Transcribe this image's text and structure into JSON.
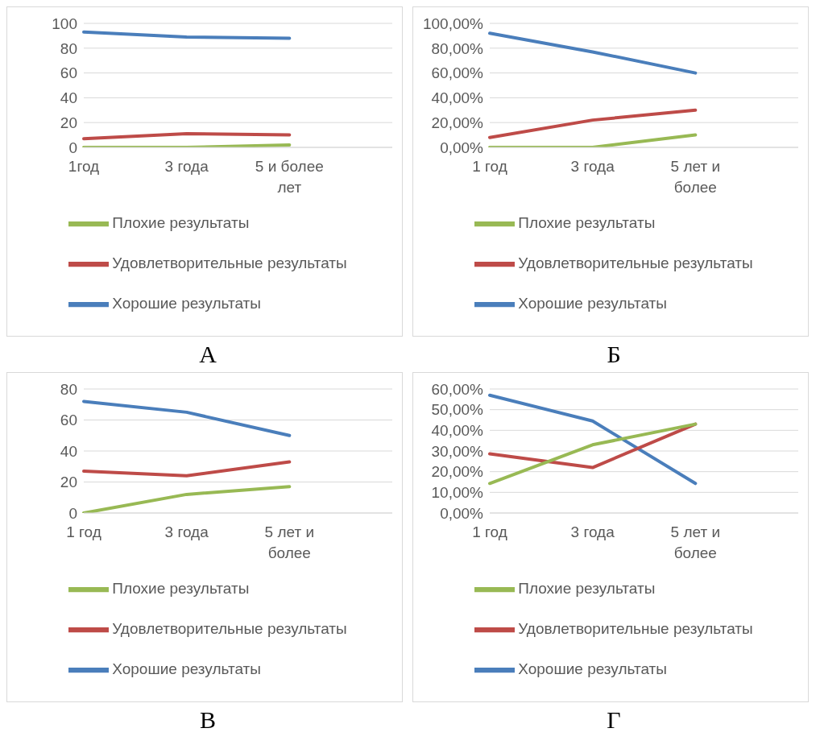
{
  "chart_data": [
    {
      "type": "line",
      "title": "А",
      "categories": [
        "1год",
        "3 года",
        "5 и более лет",
        null
      ],
      "ylim": [
        0,
        100
      ],
      "yticks": [
        0,
        20,
        40,
        60,
        80,
        100
      ],
      "grid": "y",
      "legend": "bottom",
      "marker": "none",
      "series": [
        {
          "name": "Хорошие результаты",
          "color": "#4a7ebb",
          "values": [
            93,
            89,
            88,
            null
          ]
        },
        {
          "name": "Удовлетворительные результаты",
          "color": "#be4b48",
          "values": [
            7,
            11,
            10,
            null
          ]
        },
        {
          "name": "Плохие результаты",
          "color": "#98b954",
          "values": [
            0,
            0,
            2,
            null
          ]
        }
      ]
    },
    {
      "type": "line",
      "title": "Б",
      "categories": [
        "1 год",
        "3 года",
        "5 лет и более",
        null
      ],
      "ylim": [
        0,
        100
      ],
      "yticks": [
        {
          "value": 0,
          "label": "0,00%"
        },
        {
          "value": 20,
          "label": "20,00%"
        },
        {
          "value": 40,
          "label": "40,00%"
        },
        {
          "value": 60,
          "label": "60,00%"
        },
        {
          "value": 80,
          "label": "80,00%"
        },
        {
          "value": 100,
          "label": "100,00%"
        }
      ],
      "grid": "y",
      "legend": "bottom",
      "marker": "none",
      "series": [
        {
          "name": "Хорошие результаты",
          "color": "#4a7ebb",
          "values": [
            92,
            77,
            60,
            null
          ]
        },
        {
          "name": "Удовлетворительные результаты",
          "color": "#be4b48",
          "values": [
            8,
            22,
            30,
            null
          ]
        },
        {
          "name": "Плохие результаты",
          "color": "#98b954",
          "values": [
            0,
            0,
            10,
            null
          ]
        }
      ]
    },
    {
      "type": "line",
      "title": "В",
      "categories": [
        "1 год",
        "3 года",
        "5 лет и более",
        null
      ],
      "ylim": [
        0,
        80
      ],
      "yticks": [
        0,
        20,
        40,
        60,
        80
      ],
      "grid": "y",
      "legend": "bottom",
      "marker": "none",
      "series": [
        {
          "name": "Хорошие результаты",
          "color": "#4a7ebb",
          "values": [
            72,
            65,
            50,
            null
          ]
        },
        {
          "name": "Удовлетворительные результаты",
          "color": "#be4b48",
          "values": [
            27,
            24,
            33,
            null
          ]
        },
        {
          "name": "Плохие результаты",
          "color": "#98b954",
          "values": [
            0,
            12,
            17,
            null
          ]
        }
      ]
    },
    {
      "type": "line",
      "title": "Г",
      "categories": [
        "1 год",
        "3 года",
        "5 лет и более",
        null
      ],
      "ylim": [
        0,
        60
      ],
      "yticks": [
        {
          "value": 0,
          "label": "0,00%"
        },
        {
          "value": 10,
          "label": "10,00%"
        },
        {
          "value": 20,
          "label": "20,00%"
        },
        {
          "value": 30,
          "label": "30,00%"
        },
        {
          "value": 40,
          "label": "40,00%"
        },
        {
          "value": 50,
          "label": "50,00%"
        },
        {
          "value": 60,
          "label": "60,00%"
        }
      ],
      "grid": "y",
      "legend": "bottom",
      "marker": "none",
      "series": [
        {
          "name": "Хорошие результаты",
          "color": "#4a7ebb",
          "values": [
            57,
            44.5,
            14.3,
            null
          ]
        },
        {
          "name": "Удовлетворительные результаты",
          "color": "#be4b48",
          "values": [
            28.6,
            22,
            43,
            null
          ]
        },
        {
          "name": "Плохие результаты",
          "color": "#98b954",
          "values": [
            14.3,
            33,
            43,
            null
          ]
        }
      ]
    }
  ]
}
